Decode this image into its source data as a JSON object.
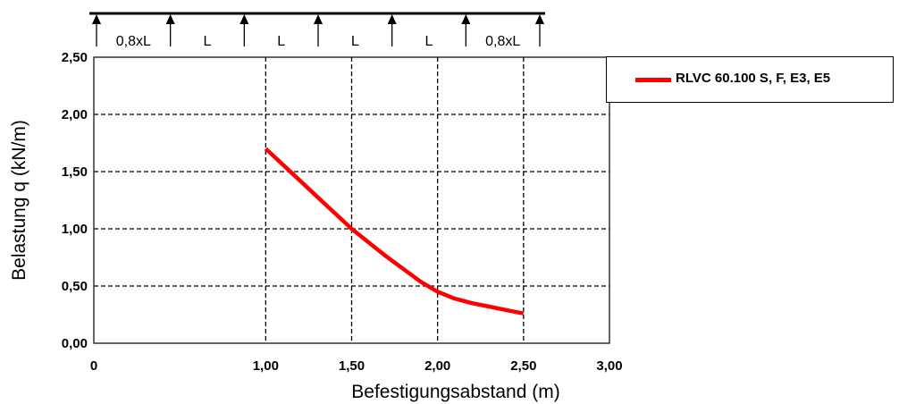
{
  "chart_data": {
    "type": "line",
    "xlabel": "Befestigungsabstand (m)",
    "ylabel": "Belastung q (kN/m)",
    "xlim": [
      0,
      3
    ],
    "ylim": [
      0,
      2.5
    ],
    "x_ticks": [
      "0",
      "1,00",
      "1,50",
      "2,00",
      "2,50",
      "3,00"
    ],
    "x_tick_values": [
      0,
      1.0,
      1.5,
      2.0,
      2.5,
      3.0
    ],
    "y_ticks": [
      "0,00",
      "0,50",
      "1,00",
      "1,50",
      "2,00",
      "2,50"
    ],
    "y_tick_values": [
      0,
      0.5,
      1.0,
      1.5,
      2.0,
      2.5
    ],
    "grid": true,
    "legend_position": "right",
    "series": [
      {
        "name": "RLVC 60.100 S, F, E3, E5",
        "color": "#ff0000",
        "x": [
          1.0,
          1.1,
          1.2,
          1.3,
          1.4,
          1.5,
          1.6,
          1.7,
          1.8,
          1.9,
          2.0,
          2.1,
          2.2,
          2.3,
          2.4,
          2.5
        ],
        "y": [
          1.7,
          1.56,
          1.42,
          1.28,
          1.14,
          1.0,
          0.88,
          0.76,
          0.65,
          0.54,
          0.45,
          0.39,
          0.35,
          0.32,
          0.29,
          0.26
        ]
      }
    ]
  },
  "span_diagram": {
    "labels": [
      "0,8xL",
      "L",
      "L",
      "L",
      "L",
      "0,8xL"
    ],
    "support_count": 7
  }
}
